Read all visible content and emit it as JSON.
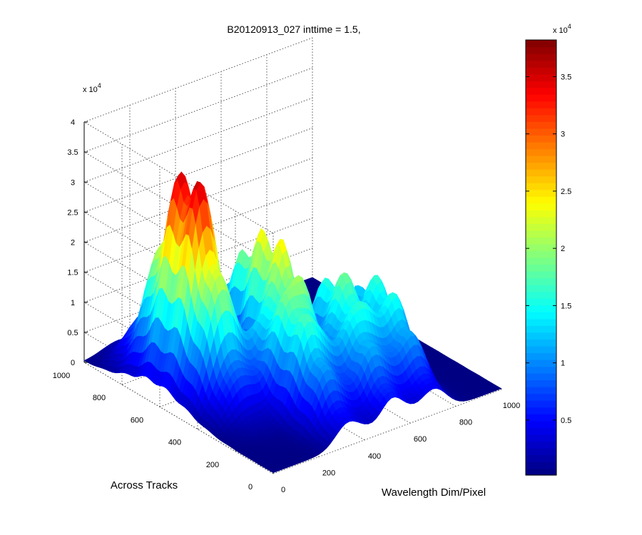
{
  "chart_data": {
    "type": "surface",
    "title": "B20120913_027 inttime = 1.5,",
    "xlabel": "Wavelength Dim/Pixel",
    "ylabel": "Across Tracks",
    "zlabel": "",
    "x_ticks": [
      "0",
      "200",
      "400",
      "600",
      "800",
      "1000"
    ],
    "y_ticks": [
      "0",
      "200",
      "400",
      "600",
      "800",
      "1000"
    ],
    "z_ticks": [
      "0",
      "0.5",
      "1",
      "1.5",
      "2",
      "2.5",
      "3",
      "3.5",
      "4"
    ],
    "z_exponent_label": "x 10",
    "z_exponent_power": "4",
    "xlim": [
      0,
      1000
    ],
    "ylim": [
      0,
      1000
    ],
    "zlim": [
      0,
      40000
    ],
    "grid": true,
    "colormap": "jet",
    "colorbar": {
      "ticks": [
        "0.5",
        "1",
        "1.5",
        "2",
        "2.5",
        "3",
        "3.5"
      ],
      "tick_values": [
        5000,
        10000,
        15000,
        20000,
        25000,
        30000,
        35000
      ],
      "range": [
        200,
        38200
      ],
      "exponent_label": "x 10",
      "exponent_power": "4"
    },
    "surface_peaks": [
      {
        "wavelength": 150,
        "track": 620,
        "value": 38000
      },
      {
        "wavelength": 420,
        "track": 540,
        "value": 23000
      },
      {
        "wavelength": 330,
        "track": 300,
        "value": 18000
      },
      {
        "wavelength": 600,
        "track": 380,
        "value": 16000
      },
      {
        "wavelength": 740,
        "track": 380,
        "value": 13000
      },
      {
        "wavelength": 520,
        "track": 200,
        "value": 12000
      },
      {
        "wavelength": 700,
        "track": 180,
        "value": 10000
      }
    ]
  }
}
